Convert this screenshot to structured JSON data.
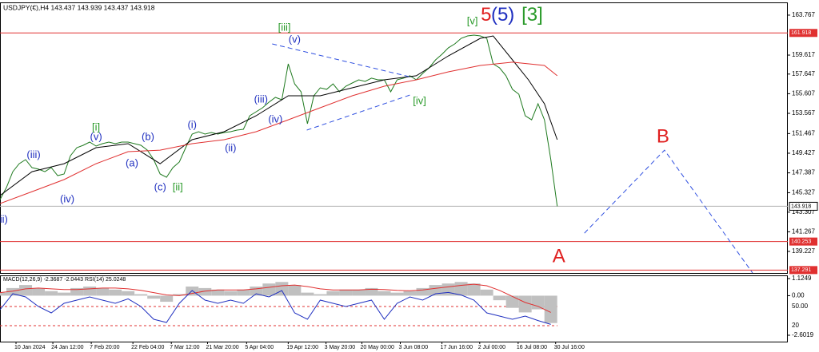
{
  "chart_data": [
    {
      "type": "line",
      "title": "USDJPY(€),H4  143.437 143.939 143.437 143.918",
      "xlim": [
        0,
        123
      ],
      "ylim": [
        136.99,
        165.09
      ],
      "xticks": [
        {
          "value": 2.5,
          "label": "10 Jan 2024"
        },
        {
          "value": 8.25,
          "label": "24 Jan 12:00"
        },
        {
          "value": 14.25,
          "label": "7 Feb 20:00"
        },
        {
          "value": 20.75,
          "label": "22 Feb 04:00"
        },
        {
          "value": 26.75,
          "label": "7 Mar 12:00"
        },
        {
          "value": 32.4,
          "label": "21 Mar 20:00"
        },
        {
          "value": 38.5,
          "label": "5 Apr 04:00"
        },
        {
          "value": 45,
          "label": "19 Apr 12:00"
        },
        {
          "value": 50.9,
          "label": "3 May 20:00"
        },
        {
          "value": 56.5,
          "label": "20 May 00:00"
        },
        {
          "value": 62.5,
          "label": "3 Jun 08:00"
        },
        {
          "value": 69,
          "label": "17 Jun 16:00"
        },
        {
          "value": 74.9,
          "label": "2 Jul 00:00"
        },
        {
          "value": 80.9,
          "label": "16 Jul 08:00"
        },
        {
          "value": 86.75,
          "label": "30 Jul 16:00"
        }
      ],
      "yticks": [
        163.767,
        159.617,
        157.647,
        155.607,
        153.567,
        151.467,
        149.427,
        147.387,
        145.327,
        143.307,
        141.267,
        139.227
      ],
      "series": [
        {
          "name": "USDJPY",
          "color": "#1f7a1f",
          "x": [
            0,
            1,
            2,
            3,
            4,
            5,
            6,
            7,
            8,
            9,
            10,
            11,
            12,
            13,
            14,
            15,
            16,
            17,
            18,
            19,
            20,
            21,
            22,
            23,
            24,
            25,
            26,
            27,
            28,
            29,
            30,
            31,
            32,
            33,
            34,
            35,
            36,
            37,
            38,
            39,
            40,
            41,
            42,
            43,
            44,
            45,
            46,
            47,
            48,
            49,
            50,
            51,
            52,
            53,
            54,
            55,
            56,
            57,
            58,
            59,
            60,
            61,
            62,
            63,
            64,
            65,
            66,
            67,
            68,
            69,
            70,
            71,
            72,
            73,
            74,
            75,
            76,
            77,
            78,
            79,
            80,
            81,
            82,
            83,
            84,
            85,
            86,
            87
          ],
          "values": [
            144.61,
            145.86,
            147.51,
            148.34,
            148.76,
            147.93,
            147.77,
            147.51,
            147.93,
            147.1,
            147.27,
            149.17,
            150.0,
            150.25,
            150.58,
            150.17,
            150.42,
            150.58,
            150.42,
            150.58,
            150.58,
            150.42,
            150.25,
            149.75,
            148.76,
            147.27,
            146.93,
            147.93,
            148.51,
            150.0,
            151.41,
            151.66,
            151.41,
            151.58,
            151.41,
            151.58,
            151.66,
            151.83,
            151.91,
            153.32,
            153.73,
            154.15,
            154.73,
            155.23,
            154.98,
            158.71,
            156.63,
            155.81,
            152.49,
            155.39,
            156.22,
            156.06,
            156.63,
            155.81,
            156.39,
            156.72,
            157.05,
            156.88,
            157.22,
            157.05,
            157.05,
            155.81,
            157.05,
            157.22,
            157.47,
            157.05,
            157.71,
            158.29,
            159.12,
            159.7,
            160.37,
            160.78,
            161.36,
            161.61,
            161.69,
            161.61,
            161.36,
            158.71,
            158.29,
            157.47,
            156.06,
            155.56,
            153.32,
            152.9,
            154.56,
            152.9,
            148.76,
            143.92
          ]
        },
        {
          "name": "MA fast",
          "color": "#000000",
          "x": [
            0,
            5,
            10,
            15,
            20,
            25,
            30,
            35,
            40,
            45,
            50,
            55,
            60,
            65,
            70,
            75,
            77,
            80,
            82.5,
            85,
            87
          ],
          "values": [
            145.03,
            147.51,
            148.34,
            150.0,
            150.42,
            148.34,
            150.83,
            151.66,
            153.32,
            155.39,
            155.39,
            156.22,
            157.05,
            157.47,
            159.54,
            161.36,
            161.61,
            159.12,
            157.05,
            154.56,
            150.83
          ]
        },
        {
          "name": "MA slow",
          "color": "#e03030",
          "x": [
            0,
            5,
            10,
            15,
            20,
            25,
            30,
            35,
            40,
            45,
            50,
            55,
            60,
            65,
            70,
            75,
            80,
            85,
            87
          ],
          "values": [
            144.2,
            145.44,
            146.69,
            148.34,
            149.59,
            149.75,
            150.42,
            150.83,
            151.66,
            152.9,
            154.15,
            155.39,
            156.39,
            157.05,
            157.88,
            158.54,
            158.88,
            158.54,
            157.47
          ]
        }
      ],
      "levels": [
        {
          "value": 161.918,
          "color": "#e03030"
        },
        {
          "value": 143.918,
          "color": "#b0b0b0"
        },
        {
          "value": 140.253,
          "color": "#e03030"
        },
        {
          "value": 137.291,
          "color": "#e03030"
        }
      ],
      "trendlines": [
        {
          "color": "#3050e0",
          "x": [
            42.5,
            64.4
          ],
          "values": [
            160.78,
            157.3
          ]
        },
        {
          "color": "#3050e0",
          "x": [
            47.9,
            64.4
          ],
          "values": [
            151.83,
            155.56
          ]
        },
        {
          "color": "#3050e0",
          "x": [
            91.25,
            103.75,
            117.5
          ],
          "values": [
            141.13,
            149.75,
            136.99
          ]
        }
      ],
      "annotations": [
        {
          "text": "[iii]",
          "color": "#2a9a2a",
          "x": 44.4,
          "y": 162.44
        },
        {
          "text": "(v)",
          "color": "#2030c0",
          "x": 46,
          "y": 161.2
        },
        {
          "text": "[v]",
          "color": "#2a9a2a",
          "x": 73.75,
          "y": 163.1
        },
        {
          "text": "5",
          "color": "#e02020",
          "x": 75.9,
          "y": 163.7
        },
        {
          "text": "(5)",
          "color": "#2030c0",
          "x": 78.5,
          "y": 163.7
        },
        {
          "text": "[3]",
          "color": "#2a9a2a",
          "x": 83.1,
          "y": 163.7
        },
        {
          "text": "[i]",
          "color": "#2a9a2a",
          "x": 15,
          "y": 152.08
        },
        {
          "text": "(v)",
          "color": "#2030c0",
          "x": 15,
          "y": 151.08
        },
        {
          "text": "(iii)",
          "color": "#2030c0",
          "x": 5.25,
          "y": 149.2
        },
        {
          "text": "(iv)",
          "color": "#2030c0",
          "x": 10.5,
          "y": 144.6
        },
        {
          "text": "ii)",
          "color": "#2030c0",
          "x": 0.6,
          "y": 142.5
        },
        {
          "text": "(b)",
          "color": "#2030c0",
          "x": 23.1,
          "y": 151.08
        },
        {
          "text": "(a)",
          "color": "#2030c0",
          "x": 20.6,
          "y": 148.34
        },
        {
          "text": "(c)",
          "color": "#2030c0",
          "x": 25,
          "y": 145.86
        },
        {
          "text": "[ii]",
          "color": "#2a9a2a",
          "x": 27.75,
          "y": 145.86
        },
        {
          "text": "(i)",
          "color": "#2030c0",
          "x": 30,
          "y": 152.3
        },
        {
          "text": "(ii)",
          "color": "#2030c0",
          "x": 36,
          "y": 149.9
        },
        {
          "text": "(iii)",
          "color": "#2030c0",
          "x": 40.75,
          "y": 154.98
        },
        {
          "text": "(iv)",
          "color": "#2030c0",
          "x": 43,
          "y": 152.9
        },
        {
          "text": "[iv]",
          "color": "#2a9a2a",
          "x": 65.5,
          "y": 154.8
        },
        {
          "text": "B",
          "color": "#e02020",
          "x": 103.5,
          "y": 151.08
        },
        {
          "text": "A",
          "color": "#e02020",
          "x": 87.25,
          "y": 138.64
        }
      ]
    },
    {
      "type": "macd",
      "title": "MACD(12,26,9) -2.3687 -2.0443  RSI(14) 25.0248",
      "xlim": [
        0,
        123
      ],
      "ylim": [
        -3.022,
        1.335
      ],
      "yticks": [
        1.1249,
        {
          "value": 0,
          "label": "0.00"
        },
        -2.6019
      ],
      "y2lim": [
        -5,
        98.75
      ],
      "y2ticks": [
        {
          "value": 50,
          "label": "50.00"
        },
        20
      ],
      "x": [
        0,
        2,
        4,
        6,
        8,
        10,
        12,
        14,
        16,
        18,
        20,
        22,
        24,
        26,
        28,
        30,
        32,
        34,
        36,
        38,
        40,
        42,
        44,
        46,
        48,
        50,
        52,
        54,
        56,
        58,
        60,
        62,
        64,
        66,
        68,
        70,
        72,
        74,
        76,
        78,
        80,
        82,
        84,
        86
      ],
      "series": [
        {
          "name": "MACD",
          "color": "#c0c0c0",
          "values": [
            0.2,
            0.5,
            0.7,
            0.5,
            0.3,
            0.2,
            0.5,
            0.6,
            0.5,
            0.4,
            0.3,
            0.1,
            -0.2,
            -0.4,
            0.1,
            0.6,
            0.5,
            0.4,
            0.3,
            0.4,
            0.6,
            0.8,
            0.9,
            0.7,
            0.2,
            0.1,
            0.3,
            0.4,
            0.4,
            0.5,
            0.3,
            0.2,
            0.3,
            0.5,
            0.7,
            0.8,
            0.9,
            0.8,
            0.4,
            -0.3,
            -0.8,
            -1.1,
            -0.9,
            -1.8
          ]
        },
        {
          "name": "Signal",
          "color": "#e03030",
          "values": [
            0.2,
            0.3,
            0.45,
            0.5,
            0.45,
            0.4,
            0.4,
            0.45,
            0.5,
            0.5,
            0.45,
            0.35,
            0.2,
            0.05,
            0,
            0.15,
            0.3,
            0.38,
            0.38,
            0.38,
            0.45,
            0.55,
            0.65,
            0.7,
            0.6,
            0.45,
            0.38,
            0.38,
            0.38,
            0.42,
            0.4,
            0.35,
            0.32,
            0.38,
            0.48,
            0.58,
            0.68,
            0.75,
            0.65,
            0.35,
            -0.05,
            -0.45,
            -0.7,
            -1.1
          ]
        },
        {
          "name": "RSI",
          "color": "#2030c0",
          "axis": "y2",
          "values": [
            45,
            70,
            65,
            50,
            40,
            55,
            60,
            65,
            60,
            55,
            62,
            50,
            30,
            25,
            55,
            75,
            60,
            55,
            60,
            55,
            70,
            65,
            75,
            40,
            30,
            60,
            55,
            50,
            55,
            60,
            30,
            55,
            65,
            60,
            70,
            72,
            68,
            60,
            40,
            35,
            30,
            35,
            28,
            22
          ]
        }
      ]
    }
  ]
}
